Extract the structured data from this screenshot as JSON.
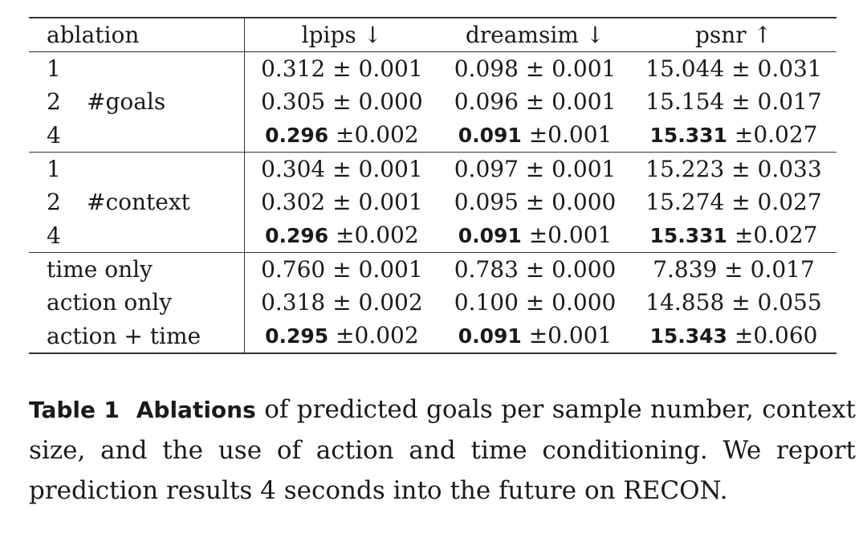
{
  "table": {
    "headers": [
      "ablation",
      "lpips ↓",
      "dreamsim ↓",
      "psnr ↑"
    ],
    "groups": [
      {
        "label": "#goals",
        "rows": [
          {
            "setting": "1",
            "lpips": {
              "mean": "0.312",
              "std": "0.001",
              "bold": false
            },
            "dreamsim": {
              "mean": "0.098",
              "std": "0.001",
              "bold": false
            },
            "psnr": {
              "mean": "15.044",
              "std": "0.031",
              "bold": false
            }
          },
          {
            "setting": "2",
            "lpips": {
              "mean": "0.305",
              "std": "0.000",
              "bold": false
            },
            "dreamsim": {
              "mean": "0.096",
              "std": "0.001",
              "bold": false
            },
            "psnr": {
              "mean": "15.154",
              "std": "0.017",
              "bold": false
            }
          },
          {
            "setting": "4",
            "lpips": {
              "mean": "0.296",
              "std": "0.002",
              "bold": true
            },
            "dreamsim": {
              "mean": "0.091",
              "std": "0.001",
              "bold": true
            },
            "psnr": {
              "mean": "15.331",
              "std": "0.027",
              "bold": true
            }
          }
        ]
      },
      {
        "label": "#context",
        "rows": [
          {
            "setting": "1",
            "lpips": {
              "mean": "0.304",
              "std": "0.001",
              "bold": false
            },
            "dreamsim": {
              "mean": "0.097",
              "std": "0.001",
              "bold": false
            },
            "psnr": {
              "mean": "15.223",
              "std": "0.033",
              "bold": false
            }
          },
          {
            "setting": "2",
            "lpips": {
              "mean": "0.302",
              "std": "0.001",
              "bold": false
            },
            "dreamsim": {
              "mean": "0.095",
              "std": "0.000",
              "bold": false
            },
            "psnr": {
              "mean": "15.274",
              "std": "0.027",
              "bold": false
            }
          },
          {
            "setting": "4",
            "lpips": {
              "mean": "0.296",
              "std": "0.002",
              "bold": true
            },
            "dreamsim": {
              "mean": "0.091",
              "std": "0.001",
              "bold": true
            },
            "psnr": {
              "mean": "15.331",
              "std": "0.027",
              "bold": true
            }
          }
        ]
      },
      {
        "label": "",
        "rows": [
          {
            "setting": "time only",
            "lpips": {
              "mean": "0.760",
              "std": "0.001",
              "bold": false
            },
            "dreamsim": {
              "mean": "0.783",
              "std": "0.000",
              "bold": false
            },
            "psnr": {
              "mean": "7.839",
              "std": "0.017",
              "bold": false
            }
          },
          {
            "setting": "action only",
            "lpips": {
              "mean": "0.318",
              "std": "0.002",
              "bold": false
            },
            "dreamsim": {
              "mean": "0.100",
              "std": "0.000",
              "bold": false
            },
            "psnr": {
              "mean": "14.858",
              "std": "0.055",
              "bold": false
            }
          },
          {
            "setting": "action + time",
            "lpips": {
              "mean": "0.295",
              "std": "0.002",
              "bold": true
            },
            "dreamsim": {
              "mean": "0.091",
              "std": "0.001",
              "bold": true
            },
            "psnr": {
              "mean": "15.343",
              "std": "0.060",
              "bold": true
            }
          }
        ]
      }
    ]
  },
  "caption": {
    "label": "Table 1",
    "lead": "Ablations",
    "text": " of predicted goals per sample number, context size, and the use of action and time conditioning. We report prediction results 4 seconds into the future on RECON."
  }
}
